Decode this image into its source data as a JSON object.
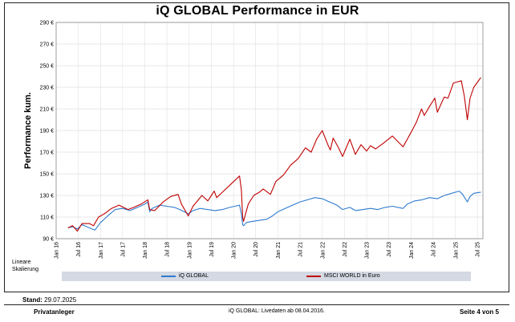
{
  "chart_data": {
    "type": "line",
    "title": "iQ GLOBAL Performance in EUR",
    "ylabel": "Performance kum.",
    "xlabel": "",
    "ylim": [
      90,
      290
    ],
    "xlim": [
      "2016-01-01",
      "2025-08-15"
    ],
    "grid": true,
    "legend_position": "bottom",
    "yticks": [
      90,
      110,
      130,
      150,
      170,
      190,
      210,
      230,
      250,
      270,
      290
    ],
    "ytick_labels": [
      "90 €",
      "110 €",
      "130 €",
      "150 €",
      "170 €",
      "190 €",
      "210 €",
      "230 €",
      "250 €",
      "270 €",
      "290 €"
    ],
    "xticks": [
      "2016-01-01",
      "2016-07-01",
      "2017-01-01",
      "2017-07-01",
      "2018-01-01",
      "2018-07-01",
      "2019-01-01",
      "2019-07-01",
      "2020-01-01",
      "2020-07-01",
      "2021-01-01",
      "2021-07-01",
      "2022-01-01",
      "2022-07-01",
      "2023-01-01",
      "2023-07-01",
      "2024-01-01",
      "2024-07-01",
      "2025-01-01",
      "2025-07-01"
    ],
    "xtick_labels": [
      "Jan 16",
      "Jul 16",
      "Jan 17",
      "Jul 17",
      "Jan 18",
      "Jul 18",
      "Jan 19",
      "Jul 19",
      "Jan 20",
      "Jul 20",
      "Jan 21",
      "Jul 21",
      "Jan 22",
      "Jul 22",
      "Jan 23",
      "Jul 23",
      "Jan 24",
      "Jul 24",
      "Jan 25",
      "Jul 25"
    ],
    "series": [
      {
        "name": "iQ GLOBAL",
        "color": "#2e7bcf",
        "points": [
          [
            "2016-04-08",
            100
          ],
          [
            "2016-05-15",
            101
          ],
          [
            "2016-06-24",
            99
          ],
          [
            "2016-08-01",
            103
          ],
          [
            "2016-10-01",
            100
          ],
          [
            "2016-11-15",
            98
          ],
          [
            "2017-01-01",
            105
          ],
          [
            "2017-03-01",
            111
          ],
          [
            "2017-05-01",
            117
          ],
          [
            "2017-07-01",
            118
          ],
          [
            "2017-09-01",
            116
          ],
          [
            "2017-11-01",
            119
          ],
          [
            "2018-01-01",
            122
          ],
          [
            "2018-01-25",
            124
          ],
          [
            "2018-02-09",
            115
          ],
          [
            "2018-03-01",
            118
          ],
          [
            "2018-05-01",
            121
          ],
          [
            "2018-07-01",
            120
          ],
          [
            "2018-09-01",
            119
          ],
          [
            "2018-10-15",
            117
          ],
          [
            "2018-12-24",
            113
          ],
          [
            "2019-02-01",
            116
          ],
          [
            "2019-04-01",
            118
          ],
          [
            "2019-06-01",
            117
          ],
          [
            "2019-08-01",
            116
          ],
          [
            "2019-10-01",
            117
          ],
          [
            "2019-12-01",
            119
          ],
          [
            "2020-02-19",
            121
          ],
          [
            "2020-03-05",
            113
          ],
          [
            "2020-03-16",
            103
          ],
          [
            "2020-03-23",
            102
          ],
          [
            "2020-04-15",
            105
          ],
          [
            "2020-06-01",
            106
          ],
          [
            "2020-08-01",
            107
          ],
          [
            "2020-10-01",
            108
          ],
          [
            "2020-11-15",
            111
          ],
          [
            "2021-01-01",
            115
          ],
          [
            "2021-03-01",
            118
          ],
          [
            "2021-05-01",
            121
          ],
          [
            "2021-07-01",
            124
          ],
          [
            "2021-09-01",
            126
          ],
          [
            "2021-11-01",
            128
          ],
          [
            "2022-01-01",
            127
          ],
          [
            "2022-03-01",
            124
          ],
          [
            "2022-05-01",
            121
          ],
          [
            "2022-06-15",
            117
          ],
          [
            "2022-08-15",
            119
          ],
          [
            "2022-10-01",
            116
          ],
          [
            "2022-12-01",
            117
          ],
          [
            "2023-02-01",
            118
          ],
          [
            "2023-04-01",
            117
          ],
          [
            "2023-06-01",
            119
          ],
          [
            "2023-08-01",
            120
          ],
          [
            "2023-10-27",
            118
          ],
          [
            "2023-12-01",
            122
          ],
          [
            "2024-02-01",
            125
          ],
          [
            "2024-04-01",
            126
          ],
          [
            "2024-06-01",
            128
          ],
          [
            "2024-08-05",
            127
          ],
          [
            "2024-10-01",
            130
          ],
          [
            "2024-12-01",
            132
          ],
          [
            "2025-02-01",
            134
          ],
          [
            "2025-03-01",
            131
          ],
          [
            "2025-04-09",
            124
          ],
          [
            "2025-05-01",
            129
          ],
          [
            "2025-06-01",
            132
          ],
          [
            "2025-07-29",
            133
          ]
        ]
      },
      {
        "name": "MSCI WORLD in Euro",
        "color": "#c00000",
        "points": [
          [
            "2016-04-08",
            100
          ],
          [
            "2016-05-15",
            102
          ],
          [
            "2016-06-24",
            97
          ],
          [
            "2016-08-01",
            104
          ],
          [
            "2016-10-01",
            104
          ],
          [
            "2016-11-04",
            102
          ],
          [
            "2016-12-15",
            110
          ],
          [
            "2017-02-01",
            113
          ],
          [
            "2017-04-01",
            118
          ],
          [
            "2017-06-01",
            121
          ],
          [
            "2017-08-15",
            117
          ],
          [
            "2017-10-01",
            119
          ],
          [
            "2017-12-01",
            122
          ],
          [
            "2018-01-25",
            126
          ],
          [
            "2018-02-09",
            117
          ],
          [
            "2018-03-23",
            116
          ],
          [
            "2018-06-01",
            124
          ],
          [
            "2018-08-01",
            129
          ],
          [
            "2018-10-01",
            131
          ],
          [
            "2018-10-29",
            122
          ],
          [
            "2018-12-24",
            111
          ],
          [
            "2019-02-01",
            120
          ],
          [
            "2019-04-15",
            130
          ],
          [
            "2019-06-03",
            125
          ],
          [
            "2019-07-25",
            134
          ],
          [
            "2019-08-15",
            128
          ],
          [
            "2019-10-01",
            133
          ],
          [
            "2019-12-15",
            141
          ],
          [
            "2020-02-19",
            148
          ],
          [
            "2020-03-05",
            135
          ],
          [
            "2020-03-16",
            110
          ],
          [
            "2020-03-23",
            106
          ],
          [
            "2020-05-01",
            122
          ],
          [
            "2020-06-15",
            130
          ],
          [
            "2020-08-01",
            133
          ],
          [
            "2020-09-01",
            136
          ],
          [
            "2020-10-30",
            131
          ],
          [
            "2020-12-15",
            143
          ],
          [
            "2021-02-15",
            149
          ],
          [
            "2021-04-15",
            158
          ],
          [
            "2021-06-15",
            164
          ],
          [
            "2021-08-15",
            174
          ],
          [
            "2021-10-01",
            170
          ],
          [
            "2021-11-15",
            182
          ],
          [
            "2021-12-31",
            190
          ],
          [
            "2022-02-15",
            177
          ],
          [
            "2022-03-08",
            172
          ],
          [
            "2022-03-31",
            183
          ],
          [
            "2022-05-15",
            174
          ],
          [
            "2022-06-16",
            166
          ],
          [
            "2022-08-15",
            182
          ],
          [
            "2022-09-30",
            168
          ],
          [
            "2022-11-15",
            177
          ],
          [
            "2022-12-31",
            171
          ],
          [
            "2023-02-01",
            176
          ],
          [
            "2023-03-15",
            173
          ],
          [
            "2023-05-15",
            178
          ],
          [
            "2023-07-31",
            185
          ],
          [
            "2023-10-27",
            175
          ],
          [
            "2023-12-31",
            188
          ],
          [
            "2024-02-15",
            198
          ],
          [
            "2024-03-28",
            210
          ],
          [
            "2024-04-19",
            204
          ],
          [
            "2024-05-31",
            212
          ],
          [
            "2024-07-15",
            220
          ],
          [
            "2024-08-05",
            207
          ],
          [
            "2024-09-30",
            221
          ],
          [
            "2024-11-01",
            220
          ],
          [
            "2024-12-15",
            234
          ],
          [
            "2025-02-18",
            236
          ],
          [
            "2025-03-15",
            222
          ],
          [
            "2025-04-09",
            200
          ],
          [
            "2025-05-01",
            220
          ],
          [
            "2025-06-01",
            230
          ],
          [
            "2025-07-29",
            239
          ]
        ]
      }
    ]
  },
  "footer": {
    "scale_note_line1": "Lineare",
    "scale_note_line2": "Skalierung",
    "stand_label": "Stand:",
    "stand_date": "29.07.2025",
    "left": "Privatanleger",
    "middle": "iQ GLOBAL:  Livedaten ab 08.04.2016.",
    "right": "Seite 4 von 5"
  }
}
